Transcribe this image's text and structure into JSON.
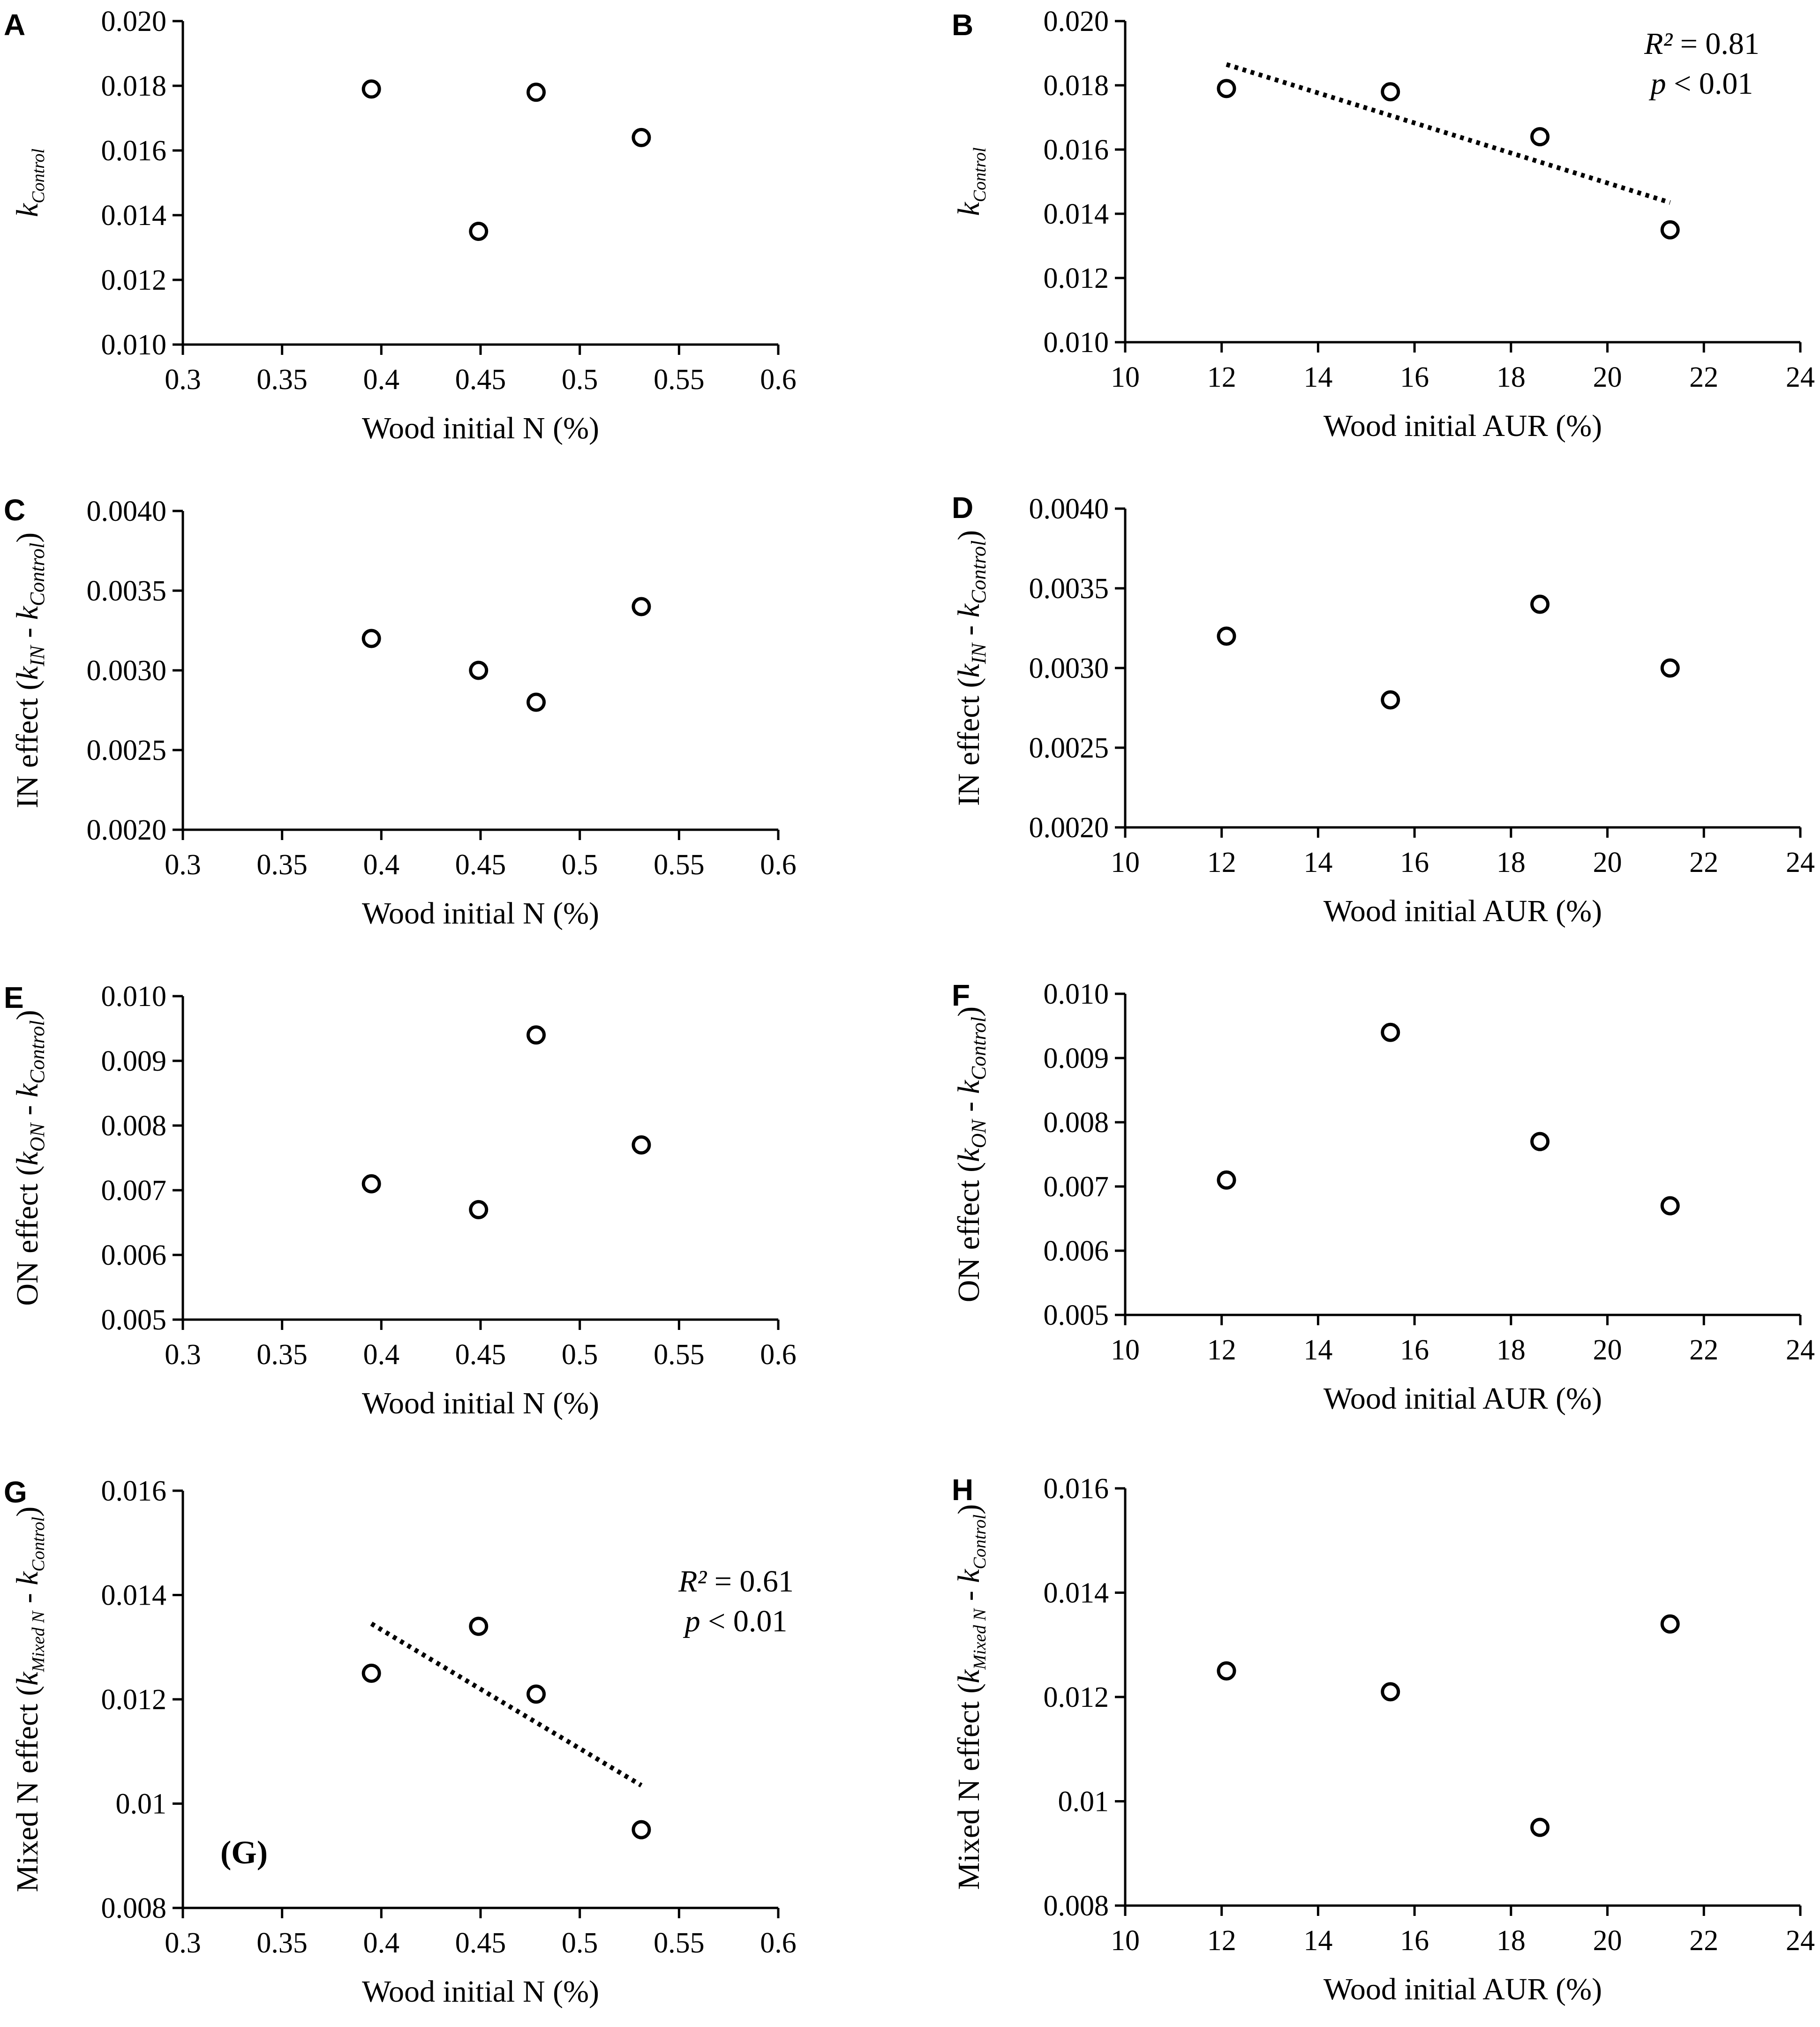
{
  "chart_data": [
    {
      "id": "A",
      "panel_label": "A",
      "type": "scatter",
      "xlabel": "Wood initial N (%)",
      "ylabel": {
        "prefix": "",
        "k1": "k",
        "k1_sub": "Control",
        "mid": "",
        "k2": "",
        "k2_sub": "",
        "suffix": ""
      },
      "xlim": [
        0.3,
        0.6
      ],
      "ylim": [
        0.01,
        0.02
      ],
      "x_ticks": [
        "0.3",
        "0.35",
        "0.4",
        "0.45",
        "0.5",
        "0.55",
        "0.6"
      ],
      "y_ticks": [
        "0.010",
        "0.012",
        "0.014",
        "0.016",
        "0.018",
        "0.020"
      ],
      "points": [
        {
          "x": 0.395,
          "y": 0.0179
        },
        {
          "x": 0.449,
          "y": 0.0135
        },
        {
          "x": 0.478,
          "y": 0.0178
        },
        {
          "x": 0.531,
          "y": 0.0164
        }
      ],
      "trendline": null,
      "annotation": null,
      "inset_label": null
    },
    {
      "id": "B",
      "panel_label": "B",
      "type": "scatter",
      "xlabel": "Wood initial AUR (%)",
      "ylabel": {
        "prefix": "",
        "k1": "k",
        "k1_sub": "Control",
        "mid": "",
        "k2": "",
        "k2_sub": "",
        "suffix": ""
      },
      "xlim": [
        10,
        24
      ],
      "ylim": [
        0.01,
        0.02
      ],
      "x_ticks": [
        "10",
        "12",
        "14",
        "16",
        "18",
        "20",
        "22",
        "24"
      ],
      "y_ticks": [
        "0.010",
        "0.012",
        "0.014",
        "0.016",
        "0.018",
        "0.020"
      ],
      "points": [
        {
          "x": 12.1,
          "y": 0.0179
        },
        {
          "x": 15.5,
          "y": 0.0178
        },
        {
          "x": 18.6,
          "y": 0.0164
        },
        {
          "x": 21.3,
          "y": 0.0135
        }
      ],
      "trendline": {
        "x0": 12.1,
        "y0": 0.01865,
        "x1": 21.3,
        "y1": 0.01435
      },
      "annotation": {
        "r2_label": "R²",
        "r2_value": " = 0.81",
        "p_label": "p",
        "p_value": " < 0.01"
      },
      "inset_label": null
    },
    {
      "id": "C",
      "panel_label": "C",
      "type": "scatter",
      "xlabel": "Wood initial N (%)",
      "ylabel": {
        "prefix": "IN effect (",
        "k1": "k",
        "k1_sub": "IN",
        "mid": " - ",
        "k2": "k",
        "k2_sub": "Control",
        "suffix": ")"
      },
      "xlim": [
        0.3,
        0.6
      ],
      "ylim": [
        0.002,
        0.004
      ],
      "x_ticks": [
        "0.3",
        "0.35",
        "0.4",
        "0.45",
        "0.5",
        "0.55",
        "0.6"
      ],
      "y_ticks": [
        "0.0020",
        "0.0025",
        "0.0030",
        "0.0035",
        "0.0040"
      ],
      "points": [
        {
          "x": 0.395,
          "y": 0.0032
        },
        {
          "x": 0.449,
          "y": 0.003
        },
        {
          "x": 0.478,
          "y": 0.0028
        },
        {
          "x": 0.531,
          "y": 0.0034
        }
      ],
      "trendline": null,
      "annotation": null,
      "inset_label": null
    },
    {
      "id": "D",
      "panel_label": "D",
      "type": "scatter",
      "xlabel": "Wood initial AUR (%)",
      "ylabel": {
        "prefix": "IN effect (",
        "k1": "k",
        "k1_sub": "IN",
        "mid": " - ",
        "k2": "k",
        "k2_sub": "Control",
        "suffix": ")"
      },
      "xlim": [
        10,
        24
      ],
      "ylim": [
        0.002,
        0.004
      ],
      "x_ticks": [
        "10",
        "12",
        "14",
        "16",
        "18",
        "20",
        "22",
        "24"
      ],
      "y_ticks": [
        "0.0020",
        "0.0025",
        "0.0030",
        "0.0035",
        "0.0040"
      ],
      "points": [
        {
          "x": 12.1,
          "y": 0.0032
        },
        {
          "x": 15.5,
          "y": 0.0028
        },
        {
          "x": 18.6,
          "y": 0.0034
        },
        {
          "x": 21.3,
          "y": 0.003
        }
      ],
      "trendline": null,
      "annotation": null,
      "inset_label": null
    },
    {
      "id": "E",
      "panel_label": "E",
      "type": "scatter",
      "xlabel": "Wood initial N (%)",
      "ylabel": {
        "prefix": "ON effect (",
        "k1": "k",
        "k1_sub": "ON",
        "mid": " - ",
        "k2": "k",
        "k2_sub": "Control",
        "suffix": ")"
      },
      "xlim": [
        0.3,
        0.6
      ],
      "ylim": [
        0.005,
        0.01
      ],
      "x_ticks": [
        "0.3",
        "0.35",
        "0.4",
        "0.45",
        "0.5",
        "0.55",
        "0.6"
      ],
      "y_ticks": [
        "0.005",
        "0.006",
        "0.007",
        "0.008",
        "0.009",
        "0.010"
      ],
      "points": [
        {
          "x": 0.395,
          "y": 0.0071
        },
        {
          "x": 0.449,
          "y": 0.0067
        },
        {
          "x": 0.478,
          "y": 0.0094
        },
        {
          "x": 0.531,
          "y": 0.0077
        }
      ],
      "trendline": null,
      "annotation": null,
      "inset_label": null
    },
    {
      "id": "F",
      "panel_label": "F",
      "type": "scatter",
      "xlabel": "Wood initial AUR (%)",
      "ylabel": {
        "prefix": "ON effect (",
        "k1": "k",
        "k1_sub": "ON",
        "mid": " - ",
        "k2": "k",
        "k2_sub": "Control",
        "suffix": ")"
      },
      "xlim": [
        10,
        24
      ],
      "ylim": [
        0.005,
        0.01
      ],
      "x_ticks": [
        "10",
        "12",
        "14",
        "16",
        "18",
        "20",
        "22",
        "24"
      ],
      "y_ticks": [
        "0.005",
        "0.006",
        "0.007",
        "0.008",
        "0.009",
        "0.010"
      ],
      "points": [
        {
          "x": 12.1,
          "y": 0.0071
        },
        {
          "x": 15.5,
          "y": 0.0094
        },
        {
          "x": 18.6,
          "y": 0.0077
        },
        {
          "x": 21.3,
          "y": 0.0067
        }
      ],
      "trendline": null,
      "annotation": null,
      "inset_label": null
    },
    {
      "id": "G",
      "panel_label": "G",
      "type": "scatter",
      "xlabel": "Wood initial N (%)",
      "ylabel": {
        "prefix": "Mixed N effect (",
        "k1": "k",
        "k1_sub": "Mixed N",
        "mid": " - ",
        "k2": "k",
        "k2_sub": "Control",
        "suffix": ")"
      },
      "xlim": [
        0.3,
        0.6
      ],
      "ylim": [
        0.008,
        0.016
      ],
      "x_ticks": [
        "0.3",
        "0.35",
        "0.4",
        "0.45",
        "0.5",
        "0.55",
        "0.6"
      ],
      "y_ticks": [
        "0.008",
        "0.01",
        "0.012",
        "0.014",
        "0.016"
      ],
      "points": [
        {
          "x": 0.395,
          "y": 0.0125
        },
        {
          "x": 0.449,
          "y": 0.0134
        },
        {
          "x": 0.478,
          "y": 0.0121
        },
        {
          "x": 0.531,
          "y": 0.0095
        }
      ],
      "trendline": {
        "x0": 0.395,
        "y0": 0.01345,
        "x1": 0.531,
        "y1": 0.01035
      },
      "annotation": {
        "r2_label": "R²",
        "r2_value": " = 0.61",
        "p_label": "p",
        "p_value": " < 0.01"
      },
      "inset_label": "(G)"
    },
    {
      "id": "H",
      "panel_label": "H",
      "type": "scatter",
      "xlabel": "Wood initial AUR (%)",
      "ylabel": {
        "prefix": "Mixed N effect (",
        "k1": "k",
        "k1_sub": "Mixed N",
        "mid": " - ",
        "k2": "k",
        "k2_sub": "Control",
        "suffix": ")"
      },
      "xlim": [
        10,
        24
      ],
      "ylim": [
        0.008,
        0.016
      ],
      "x_ticks": [
        "10",
        "12",
        "14",
        "16",
        "18",
        "20",
        "22",
        "24"
      ],
      "y_ticks": [
        "0.008",
        "0.01",
        "0.012",
        "0.014",
        "0.016"
      ],
      "points": [
        {
          "x": 12.1,
          "y": 0.0125
        },
        {
          "x": 15.5,
          "y": 0.0121
        },
        {
          "x": 18.6,
          "y": 0.0095
        },
        {
          "x": 21.3,
          "y": 0.0134
        }
      ],
      "trendline": null,
      "annotation": null,
      "inset_label": null
    }
  ]
}
